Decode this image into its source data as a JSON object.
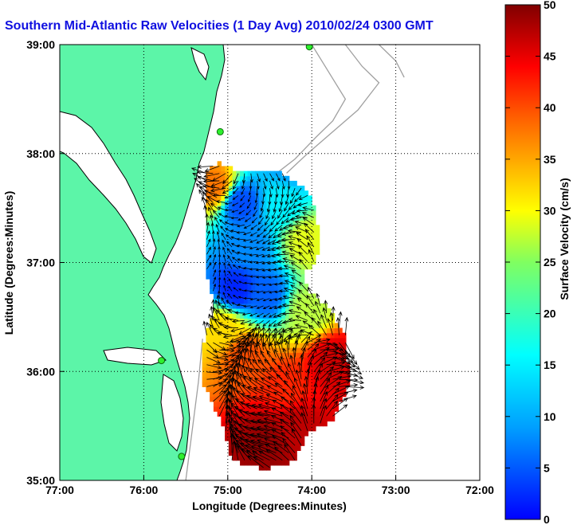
{
  "page": {
    "title": "Southern Mid-Atlantic Raw Velocities (1 Day Avg) 2010/02/24 0300 GMT"
  },
  "chart_data": {
    "type": "heatmap",
    "subtype": "surface current vector map",
    "title": "Southern Mid-Atlantic Raw Velocities (1 Day Avg) 2010/02/24 0300 GMT",
    "xlabel": "Longitude (Degrees:Minutes)",
    "ylabel": "Latitude (Degrees:Minutes)",
    "x_ticks": [
      "77:00",
      "76:00",
      "75:00",
      "74:00",
      "73:00",
      "72:00"
    ],
    "x_tick_values": [
      -77,
      -76,
      -75,
      -74,
      -73,
      -72
    ],
    "y_ticks": [
      "35:00",
      "36:00",
      "37:00",
      "38:00",
      "39:00"
    ],
    "y_tick_values": [
      35,
      36,
      37,
      38,
      39
    ],
    "xlim": [
      -77,
      -72
    ],
    "ylim": [
      35,
      39
    ],
    "grid": "dotted",
    "colorbar": {
      "label": "Surface Velocity (cm/s)",
      "ticks": [
        "0",
        "5",
        "10",
        "15",
        "20",
        "25",
        "30",
        "35",
        "40",
        "45",
        "50"
      ],
      "range": [
        0,
        50
      ],
      "colormap": "jet"
    },
    "land_color": "#5cf5a8",
    "coastline_color": "#000000",
    "bathymetry_color": "#a0a0a0",
    "vector_color": "#000000",
    "speed_field_samples": [
      {
        "lon": -74.85,
        "lat": 37.55,
        "speed": 10
      },
      {
        "lon": -74.35,
        "lat": 37.55,
        "speed": 18
      },
      {
        "lon": -74.75,
        "lat": 37.15,
        "speed": 13
      },
      {
        "lon": -74.9,
        "lat": 36.75,
        "speed": 8
      },
      {
        "lon": -74.55,
        "lat": 36.7,
        "speed": 11
      },
      {
        "lon": -75.15,
        "lat": 37.7,
        "speed": 38
      },
      {
        "lon": -74.25,
        "lat": 37.9,
        "speed": 14
      },
      {
        "lon": -74.05,
        "lat": 37.2,
        "speed": 30
      },
      {
        "lon": -74.8,
        "lat": 36.15,
        "speed": 40
      },
      {
        "lon": -74.3,
        "lat": 35.85,
        "speed": 42
      },
      {
        "lon": -74.55,
        "lat": 35.35,
        "speed": 49
      },
      {
        "lon": -74.2,
        "lat": 35.5,
        "speed": 47
      },
      {
        "lon": -73.75,
        "lat": 36.1,
        "speed": 46
      },
      {
        "lon": -74.05,
        "lat": 36.55,
        "speed": 28
      },
      {
        "lon": -75.05,
        "lat": 36.4,
        "speed": 33
      }
    ]
  }
}
